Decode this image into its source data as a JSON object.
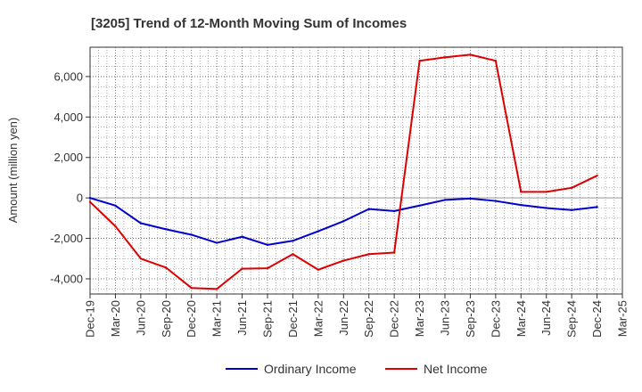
{
  "chart_data": {
    "type": "line",
    "title": "[3205]  Trend of 12-Month Moving Sum of Incomes",
    "xlabel": "",
    "ylabel": "Amount (million yen)",
    "ylim": [
      -4750,
      7450
    ],
    "yticks": [
      -4000,
      -2000,
      0,
      2000,
      4000,
      6000
    ],
    "ytick_labels": [
      "-4,000",
      "-2,000",
      "0",
      "2,000",
      "4,000",
      "6,000"
    ],
    "grid": true,
    "legend_position": "bottom-center",
    "categories": [
      "Dec-19",
      "Mar-20",
      "Jun-20",
      "Sep-20",
      "Dec-20",
      "Mar-21",
      "Jun-21",
      "Sep-21",
      "Dec-21",
      "Mar-22",
      "Jun-22",
      "Sep-22",
      "Dec-22",
      "Mar-23",
      "Jun-23",
      "Sep-23",
      "Dec-23",
      "Mar-24",
      "Jun-24",
      "Sep-24",
      "Dec-24",
      "Mar-25"
    ],
    "series": [
      {
        "name": "Ordinary Income",
        "color": "#0000cc",
        "values": [
          0,
          -380,
          -1250,
          -1550,
          -1820,
          -2220,
          -1920,
          -2320,
          -2120,
          -1650,
          -1150,
          -550,
          -650,
          -380,
          -100,
          -30,
          -150,
          -350,
          -500,
          -600,
          -450,
          null
        ]
      },
      {
        "name": "Net Income",
        "color": "#dd0000",
        "values": [
          -200,
          -1400,
          -3000,
          -3450,
          -4450,
          -4500,
          -3500,
          -3480,
          -2780,
          -3550,
          -3100,
          -2780,
          -2700,
          6780,
          6950,
          7080,
          6780,
          300,
          300,
          500,
          1100,
          null
        ]
      }
    ]
  }
}
